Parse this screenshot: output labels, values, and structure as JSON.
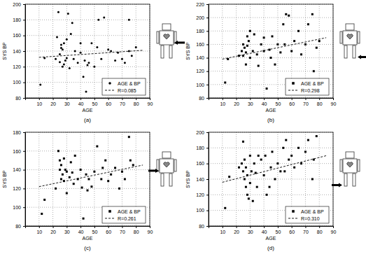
{
  "chart_data": [
    {
      "type": "scatter",
      "caption": "(a)",
      "x_label": "AGE",
      "y_label": "SYS BP",
      "xlim": [
        0,
        90
      ],
      "xticks": [
        10,
        20,
        30,
        40,
        50,
        60,
        70,
        80,
        90
      ],
      "ylim": [
        80,
        200
      ],
      "yticks": [
        80,
        100,
        120,
        140,
        160,
        180,
        200
      ],
      "grid": true,
      "legend": "lower right",
      "series": [
        {
          "name": "AGE & BP",
          "type": "scatter",
          "marker": "circle",
          "color": "#000000",
          "x": [
            11,
            14,
            22,
            23,
            24,
            25,
            25,
            26,
            26,
            27,
            27,
            28,
            28,
            29,
            30,
            30,
            31,
            32,
            33,
            34,
            35,
            36,
            38,
            40,
            40,
            42,
            43,
            44,
            45,
            46,
            48,
            50,
            52,
            53,
            55,
            57,
            60,
            62,
            65,
            67,
            70,
            72,
            75,
            75,
            77,
            80
          ],
          "values": [
            97,
            131,
            130,
            158,
            190,
            136,
            126,
            144,
            148,
            120,
            142,
            123,
            150,
            128,
            131,
            155,
            188,
            118,
            162,
            176,
            130,
            140,
            125,
            150,
            138,
            107,
            128,
            88,
            122,
            125,
            150,
            120,
            145,
            180,
            130,
            183,
            142,
            140,
            128,
            138,
            130,
            125,
            180,
            140,
            134,
            145
          ]
        },
        {
          "name": "R=0.085",
          "type": "line",
          "line_style": "dashed",
          "color": "#000000",
          "x": [
            10,
            85
          ],
          "values": [
            132,
            141
          ]
        }
      ]
    },
    {
      "type": "scatter",
      "caption": "(b)",
      "x_label": "AGE",
      "y_label": "SYS BP",
      "xlim": [
        0,
        90
      ],
      "xticks": [
        10,
        20,
        30,
        40,
        50,
        60,
        70,
        80,
        90
      ],
      "ylim": [
        80,
        220
      ],
      "yticks": [
        80,
        100,
        120,
        140,
        160,
        180,
        200,
        220
      ],
      "grid": true,
      "legend": "lower right",
      "series": [
        {
          "name": "AGE & BP",
          "type": "scatter",
          "marker": "square",
          "color": "#000000",
          "x": [
            12,
            14,
            22,
            24,
            25,
            25,
            26,
            27,
            27,
            28,
            28,
            29,
            30,
            30,
            32,
            33,
            35,
            36,
            38,
            40,
            40,
            42,
            44,
            45,
            46,
            48,
            50,
            52,
            54,
            55,
            56,
            58,
            60,
            62,
            65,
            67,
            70,
            72,
            75,
            76,
            78,
            80
          ],
          "values": [
            103,
            138,
            143,
            150,
            160,
            143,
            155,
            130,
            148,
            158,
            172,
            165,
            180,
            140,
            150,
            175,
            145,
            128,
            160,
            170,
            150,
            94,
            152,
            140,
            172,
            130,
            160,
            148,
            190,
            160,
            205,
            203,
            150,
            165,
            180,
            145,
            160,
            190,
            205,
            120,
            155,
            165
          ]
        },
        {
          "name": "R=0.298",
          "type": "line",
          "line_style": "dashed",
          "color": "#000000",
          "x": [
            10,
            85
          ],
          "values": [
            138,
            170
          ]
        }
      ]
    },
    {
      "type": "scatter",
      "caption": "(c)",
      "x_label": "AGE",
      "y_label": "SYS BP",
      "xlim": [
        0,
        90
      ],
      "xticks": [
        10,
        20,
        30,
        40,
        50,
        60,
        70,
        80,
        90
      ],
      "ylim": [
        80,
        180
      ],
      "yticks": [
        80,
        100,
        120,
        140,
        160,
        180
      ],
      "grid": true,
      "legend": "lower right",
      "series": [
        {
          "name": "AGE & BP",
          "type": "scatter",
          "marker": "square",
          "color": "#000000",
          "x": [
            12,
            14,
            22,
            24,
            25,
            25,
            26,
            26,
            27,
            28,
            28,
            29,
            30,
            30,
            32,
            33,
            34,
            35,
            36,
            38,
            40,
            41,
            42,
            44,
            45,
            46,
            48,
            50,
            52,
            55,
            56,
            58,
            60,
            62,
            65,
            68,
            70,
            72,
            75,
            76,
            78
          ],
          "values": [
            93,
            108,
            120,
            160,
            150,
            140,
            130,
            145,
            135,
            152,
            128,
            140,
            138,
            115,
            132,
            148,
            137,
            125,
            155,
            130,
            140,
            121,
            88,
            135,
            118,
            130,
            122,
            138,
            165,
            130,
            142,
            150,
            128,
            135,
            142,
            120,
            138,
            130,
            175,
            150,
            145
          ]
        },
        {
          "name": "R=0.261",
          "type": "line",
          "line_style": "dashed",
          "color": "#000000",
          "x": [
            10,
            85
          ],
          "values": [
            122,
            145
          ]
        }
      ]
    },
    {
      "type": "scatter",
      "caption": "(d)",
      "x_label": "AGE",
      "y_label": "SYS BP",
      "xlim": [
        0,
        90
      ],
      "xticks": [
        10,
        20,
        30,
        40,
        50,
        60,
        70,
        80,
        90
      ],
      "ylim": [
        80,
        200
      ],
      "yticks": [
        80,
        100,
        120,
        140,
        160,
        180,
        200
      ],
      "grid": true,
      "legend": "lower right",
      "series": [
        {
          "name": "AGE & BP",
          "type": "scatter",
          "marker": "square",
          "color": "#000000",
          "x": [
            12,
            15,
            22,
            24,
            25,
            25,
            26,
            26,
            27,
            27,
            28,
            28,
            29,
            30,
            30,
            31,
            32,
            33,
            34,
            35,
            36,
            38,
            40,
            41,
            42,
            44,
            45,
            46,
            48,
            50,
            52,
            54,
            55,
            56,
            58,
            60,
            62,
            65,
            67,
            70,
            72,
            75,
            76,
            78
          ],
          "values": [
            103,
            143,
            155,
            160,
            188,
            150,
            140,
            165,
            130,
            155,
            120,
            145,
            115,
            135,
            170,
            150,
            112,
            160,
            148,
            130,
            170,
            165,
            145,
            170,
            120,
            130,
            155,
            175,
            140,
            160,
            150,
            180,
            150,
            190,
            165,
            170,
            155,
            180,
            160,
            175,
            190,
            140,
            165,
            195
          ]
        },
        {
          "name": "R=0.310",
          "type": "line",
          "line_style": "dashed",
          "color": "#000000",
          "x": [
            10,
            85
          ],
          "values": [
            136,
            170
          ]
        }
      ]
    }
  ]
}
